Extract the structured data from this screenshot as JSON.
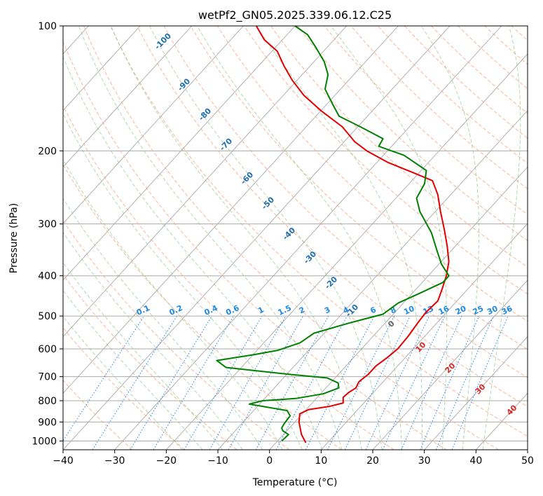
{
  "chart_data": {
    "type": "line",
    "title": "wetPf2_GN05.2025.339.06.12.C25",
    "xlabel": "Temperature (°C)",
    "ylabel": "Pressure (hPa)",
    "xlim": [
      -40,
      50
    ],
    "ylim": [
      1050,
      100
    ],
    "y_scale": "log",
    "skew": "skew-T",
    "x_ticks": [
      "−40",
      "−30",
      "−20",
      "−10",
      "0",
      "10",
      "20",
      "30",
      "40",
      "50"
    ],
    "y_ticks": [
      "100",
      "200",
      "300",
      "400",
      "500",
      "600",
      "700",
      "800",
      "900",
      "1000"
    ],
    "grid": true,
    "series": [
      {
        "color": "#e30000",
        "points": [
          [
            5.8,
            1010
          ],
          [
            3.5,
            965
          ],
          [
            0.8,
            900
          ],
          [
            -0.5,
            860
          ],
          [
            0.5,
            840
          ],
          [
            4.0,
            825
          ],
          [
            6.0,
            810
          ],
          [
            5.0,
            785
          ],
          [
            5.2,
            765
          ],
          [
            5.8,
            745
          ],
          [
            5.3,
            720
          ],
          [
            5.8,
            690
          ],
          [
            5.8,
            660
          ],
          [
            6.5,
            630
          ],
          [
            7.0,
            600
          ],
          [
            6.8,
            560
          ],
          [
            6.3,
            520
          ],
          [
            6.0,
            490
          ],
          [
            6.3,
            460
          ],
          [
            5.0,
            430
          ],
          [
            3.5,
            400
          ],
          [
            1.5,
            370
          ],
          [
            -1.5,
            340
          ],
          [
            -5.0,
            310
          ],
          [
            -9.0,
            280
          ],
          [
            -12.5,
            255
          ],
          [
            -16.0,
            236
          ],
          [
            -21.0,
            226
          ],
          [
            -28.0,
            213
          ],
          [
            -34.0,
            200
          ],
          [
            -38.0,
            190
          ],
          [
            -43.0,
            175
          ],
          [
            -50.0,
            160
          ],
          [
            -56.0,
            147
          ],
          [
            -61.0,
            135
          ],
          [
            -65.0,
            125
          ],
          [
            -69.0,
            115
          ],
          [
            -73.5,
            108
          ],
          [
            -77.5,
            100
          ]
        ]
      },
      {
        "color": "#008000",
        "points": [
          [
            0.8,
            1000
          ],
          [
            1.0,
            965
          ],
          [
            -0.8,
            945
          ],
          [
            -1.5,
            930
          ],
          [
            -1.8,
            905
          ],
          [
            -2.0,
            870
          ],
          [
            -3.5,
            845
          ],
          [
            -12.0,
            815
          ],
          [
            -10.0,
            800
          ],
          [
            -4.0,
            790
          ],
          [
            0.5,
            770
          ],
          [
            2.5,
            745
          ],
          [
            1.5,
            725
          ],
          [
            -1.5,
            705
          ],
          [
            -10.0,
            690
          ],
          [
            -23.0,
            665
          ],
          [
            -26.0,
            640
          ],
          [
            -20.0,
            620
          ],
          [
            -16.0,
            605
          ],
          [
            -13.0,
            580
          ],
          [
            -12.0,
            550
          ],
          [
            -7.0,
            520
          ],
          [
            -2.0,
            495
          ],
          [
            -1.0,
            465
          ],
          [
            1.5,
            440
          ],
          [
            4.0,
            415
          ],
          [
            4.0,
            400
          ],
          [
            0.5,
            375
          ],
          [
            -2.5,
            350
          ],
          [
            -7.0,
            315
          ],
          [
            -13.0,
            280
          ],
          [
            -16.0,
            260
          ],
          [
            -17.0,
            240
          ],
          [
            -19.0,
            223
          ],
          [
            -26.0,
            205
          ],
          [
            -32.5,
            195
          ],
          [
            -33.0,
            187
          ],
          [
            -39.5,
            175
          ],
          [
            -45.5,
            165
          ],
          [
            -49.0,
            154
          ],
          [
            -53.0,
            142
          ],
          [
            -55.0,
            131
          ],
          [
            -58.0,
            122
          ],
          [
            -62.0,
            113
          ],
          [
            -66.0,
            105
          ],
          [
            -70.0,
            100
          ]
        ]
      }
    ],
    "dry_adiabat_labels": [
      "-100",
      "-90",
      "-80",
      "-70",
      "-60",
      "-50",
      "-40",
      "-30",
      "-20",
      "-10",
      "0",
      "10",
      "20",
      "30",
      "40"
    ],
    "mixing_ratio_labels": [
      "0.1",
      "0.2",
      "0.4",
      "0.6",
      "1",
      "1.5",
      "2",
      "3",
      "4",
      "6",
      "8",
      "10",
      "13",
      "16",
      "20",
      "25",
      "30",
      "36"
    ],
    "moist_adiabat_label": "0",
    "colors": {
      "temperature": "#e30000",
      "dewpoint": "#008000",
      "dry_adiabat": "#f4a582",
      "moist_adiabat": "#7fbf7b",
      "mixing_ratio": "#1e88e5",
      "adiabat_label_cold": "#1f6fb0",
      "adiabat_label_warm": "#d62728",
      "isotherm": "#999999"
    }
  }
}
